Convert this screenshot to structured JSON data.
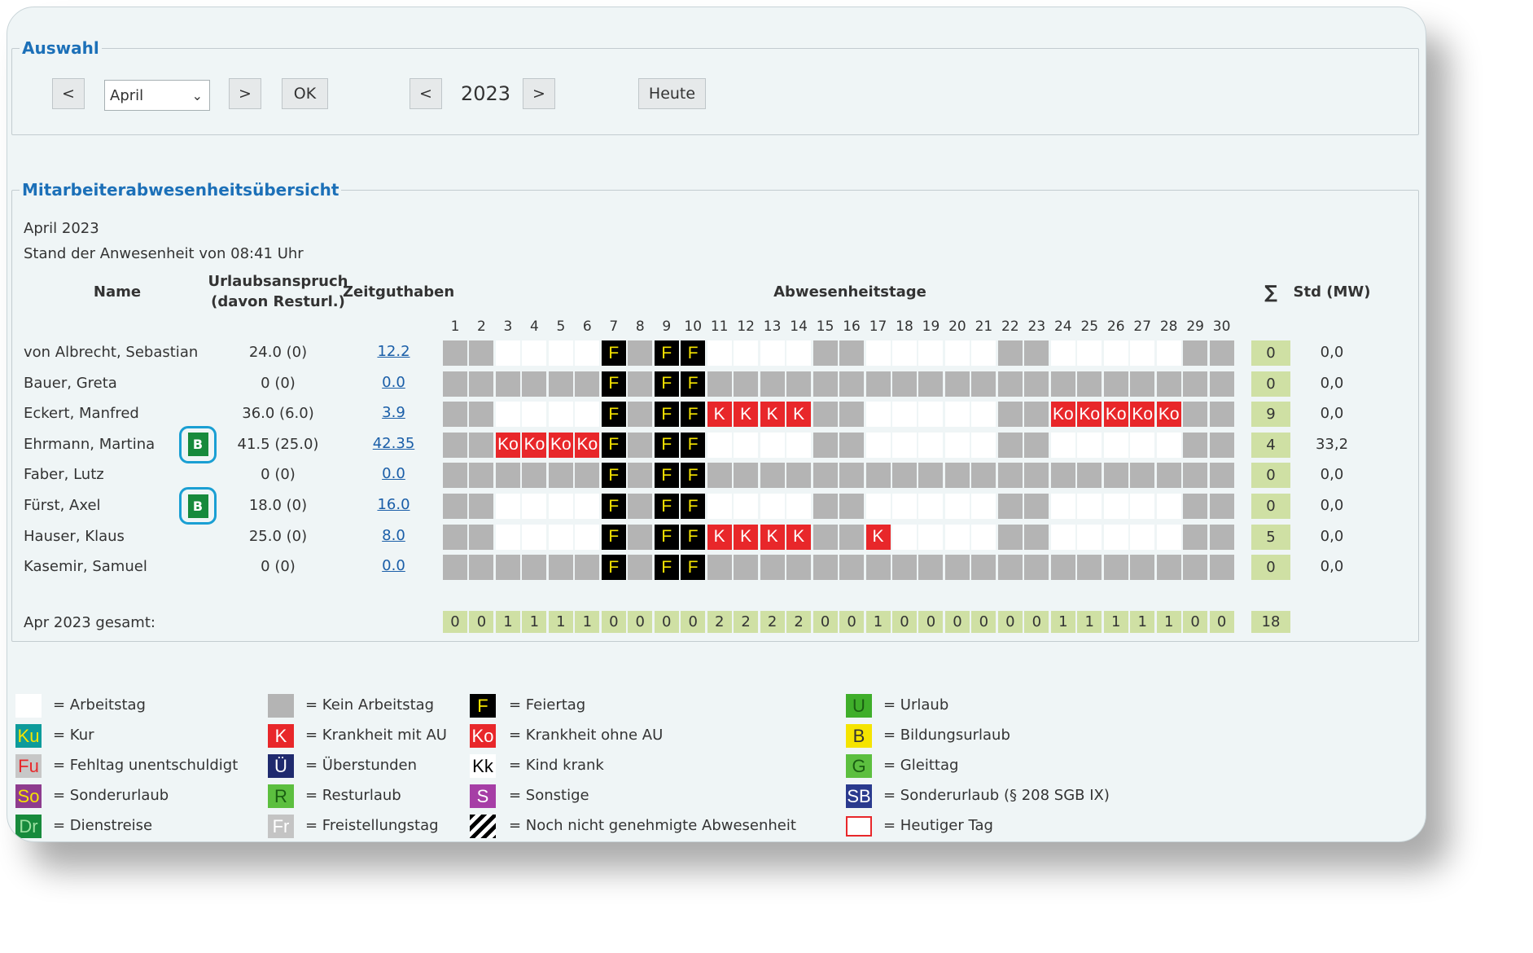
{
  "selection": {
    "title": "Auswahl",
    "prev_month": "<",
    "month": "April",
    "next_month": ">",
    "ok": "OK",
    "prev_year": "<",
    "year": "2023",
    "next_year": ">",
    "today": "Heute"
  },
  "overview": {
    "title": "Mitarbeiterabwesenheitsübersicht",
    "month_label": "April 2023",
    "status": "Stand der Anwesenheit von 08:41 Uhr",
    "headers": {
      "name": "Name",
      "vacation_line1": "Urlaubsanspruch",
      "vacation_line2": "(davon Resturl.)",
      "time_credit": "Zeitguthaben",
      "absence_days": "Abwesenheitstage",
      "sum": "∑",
      "hours": "Std (MW)"
    },
    "days": [
      "1",
      "2",
      "3",
      "4",
      "5",
      "6",
      "7",
      "8",
      "9",
      "10",
      "11",
      "12",
      "13",
      "14",
      "15",
      "16",
      "17",
      "18",
      "19",
      "20",
      "21",
      "22",
      "23",
      "24",
      "25",
      "26",
      "27",
      "28",
      "29",
      "30"
    ],
    "employees": [
      {
        "name": "von Albrecht, Sebastian",
        "badge": "",
        "vacation": "24.0 (0)",
        "time_credit": "12.2",
        "sum": "0",
        "hours": "0,0",
        "cells": [
          "n",
          "n",
          "w",
          "w",
          "w",
          "w",
          "F",
          "n",
          "F",
          "F",
          "w",
          "w",
          "w",
          "w",
          "n",
          "n",
          "w",
          "w",
          "w",
          "w",
          "w",
          "n",
          "n",
          "w",
          "w",
          "w",
          "w",
          "w",
          "n",
          "n"
        ]
      },
      {
        "name": "Bauer, Greta",
        "badge": "",
        "vacation": "0 (0)",
        "time_credit": "0.0",
        "sum": "0",
        "hours": "0,0",
        "cells": [
          "n",
          "n",
          "n",
          "n",
          "n",
          "n",
          "F",
          "n",
          "F",
          "F",
          "n",
          "n",
          "n",
          "n",
          "n",
          "n",
          "n",
          "n",
          "n",
          "n",
          "n",
          "n",
          "n",
          "n",
          "n",
          "n",
          "n",
          "n",
          "n",
          "n"
        ]
      },
      {
        "name": "Eckert, Manfred",
        "badge": "",
        "vacation": "36.0 (6.0)",
        "time_credit": "3.9",
        "sum": "9",
        "hours": "0,0",
        "cells": [
          "n",
          "n",
          "w",
          "w",
          "w",
          "w",
          "F",
          "n",
          "F",
          "F",
          "K",
          "K",
          "K",
          "K",
          "n",
          "n",
          "w",
          "w",
          "w",
          "w",
          "w",
          "n",
          "n",
          "Ko",
          "Ko",
          "Ko",
          "Ko",
          "Ko",
          "n",
          "n"
        ]
      },
      {
        "name": "Ehrmann, Martina",
        "badge": "B",
        "vacation": "41.5 (25.0)",
        "time_credit": "42.35",
        "sum": "4",
        "hours": "33,2",
        "cells": [
          "n",
          "n",
          "Ko",
          "Ko",
          "Ko",
          "Ko",
          "F",
          "n",
          "F",
          "F",
          "w",
          "w",
          "w",
          "w",
          "n",
          "n",
          "w",
          "w",
          "w",
          "w",
          "w",
          "n",
          "n",
          "w",
          "w",
          "w",
          "w",
          "w",
          "n",
          "n"
        ]
      },
      {
        "name": "Faber, Lutz",
        "badge": "",
        "vacation": "0 (0)",
        "time_credit": "0.0",
        "sum": "0",
        "hours": "0,0",
        "cells": [
          "n",
          "n",
          "n",
          "n",
          "n",
          "n",
          "F",
          "n",
          "F",
          "F",
          "n",
          "n",
          "n",
          "n",
          "n",
          "n",
          "n",
          "n",
          "n",
          "n",
          "n",
          "n",
          "n",
          "n",
          "n",
          "n",
          "n",
          "n",
          "n",
          "n"
        ]
      },
      {
        "name": "Fürst, Axel",
        "badge": "B",
        "vacation": "18.0 (0)",
        "time_credit": "16.0",
        "sum": "0",
        "hours": "0,0",
        "cells": [
          "n",
          "n",
          "w",
          "w",
          "w",
          "w",
          "F",
          "n",
          "F",
          "F",
          "w",
          "w",
          "w",
          "w",
          "n",
          "n",
          "w",
          "w",
          "w",
          "w",
          "w",
          "n",
          "n",
          "w",
          "w",
          "w",
          "w",
          "w",
          "n",
          "n"
        ]
      },
      {
        "name": "Hauser, Klaus",
        "badge": "",
        "vacation": "25.0 (0)",
        "time_credit": "8.0",
        "sum": "5",
        "hours": "0,0",
        "cells": [
          "n",
          "n",
          "w",
          "w",
          "w",
          "w",
          "F",
          "n",
          "F",
          "F",
          "K",
          "K",
          "K",
          "K",
          "n",
          "n",
          "K",
          "w",
          "w",
          "w",
          "w",
          "n",
          "n",
          "w",
          "w",
          "w",
          "w",
          "w",
          "n",
          "n"
        ]
      },
      {
        "name": "Kasemir, Samuel",
        "badge": "",
        "vacation": "0 (0)",
        "time_credit": "0.0",
        "sum": "0",
        "hours": "0,0",
        "cells": [
          "n",
          "n",
          "n",
          "n",
          "n",
          "n",
          "F",
          "n",
          "F",
          "F",
          "n",
          "n",
          "n",
          "n",
          "n",
          "n",
          "n",
          "n",
          "n",
          "n",
          "n",
          "n",
          "n",
          "n",
          "n",
          "n",
          "n",
          "n",
          "n",
          "n"
        ]
      }
    ],
    "total_label": "Apr 2023 gesamt:",
    "totals": [
      "0",
      "0",
      "1",
      "1",
      "1",
      "1",
      "0",
      "0",
      "0",
      "0",
      "2",
      "2",
      "2",
      "2",
      "0",
      "0",
      "1",
      "0",
      "0",
      "0",
      "0",
      "0",
      "0",
      "1",
      "1",
      "1",
      "1",
      "1",
      "0",
      "0"
    ],
    "total_sum": "18"
  },
  "legend": [
    {
      "code": "",
      "label": "= Arbeitstag",
      "bg": "#ffffff",
      "fg": "#000000"
    },
    {
      "code": "",
      "label": "= Kein Arbeitstag",
      "bg": "#b4b4b4",
      "fg": "#000000"
    },
    {
      "code": "F",
      "label": "= Feiertag",
      "bg": "#000000",
      "fg": "#f5e400"
    },
    {
      "code": "U",
      "label": "= Urlaub",
      "bg": "#3fae2a",
      "fg": "#1a5e12"
    },
    {
      "code": "Ku",
      "label": "= Kur",
      "bg": "#0d9b9b",
      "fg": "#f5e400"
    },
    {
      "code": "K",
      "label": "= Krankheit mit AU",
      "bg": "#e8272a",
      "fg": "#ffffff"
    },
    {
      "code": "Ko",
      "label": "= Krankheit ohne AU",
      "bg": "#e8272a",
      "fg": "#ffffff"
    },
    {
      "code": "B",
      "label": "= Bildungsurlaub",
      "bg": "#f5e400",
      "fg": "#333333"
    },
    {
      "code": "Fu",
      "label": "= Fehltag unentschuldigt",
      "bg": "#c7c7c7",
      "fg": "#e8272a"
    },
    {
      "code": "Ü",
      "label": "= Überstunden",
      "bg": "#1f2a6e",
      "fg": "#ffffff"
    },
    {
      "code": "Kk",
      "label": "= Kind krank",
      "bg": "#ffffff",
      "fg": "#000000"
    },
    {
      "code": "G",
      "label": "= Gleittag",
      "bg": "#5cbf3f",
      "fg": "#1a5e12"
    },
    {
      "code": "So",
      "label": "= Sonderurlaub",
      "bg": "#8e3c8e",
      "fg": "#f5e400"
    },
    {
      "code": "R",
      "label": "= Resturlaub",
      "bg": "#5cbf3f",
      "fg": "#1a5e12"
    },
    {
      "code": "S",
      "label": "= Sonstige",
      "bg": "#a63ea6",
      "fg": "#ffffff"
    },
    {
      "code": "SB",
      "label": "= Sonderurlaub (§ 208 SGB IX)",
      "bg": "#2a3a8e",
      "fg": "#ffffff"
    },
    {
      "code": "Dr",
      "label": "= Dienstreise",
      "bg": "#178a3c",
      "fg": "#9be0a0"
    },
    {
      "code": "Fr",
      "label": "= Freistellungstag",
      "bg": "#c4c4c4",
      "fg": "#ffffff"
    },
    {
      "code": "",
      "label": "= Noch nicht genehmigte Abwesenheit",
      "bg": "hatch",
      "fg": "#000000"
    },
    {
      "code": "",
      "label": "= Heutiger Tag",
      "bg": "today",
      "fg": "#e8272a"
    }
  ]
}
